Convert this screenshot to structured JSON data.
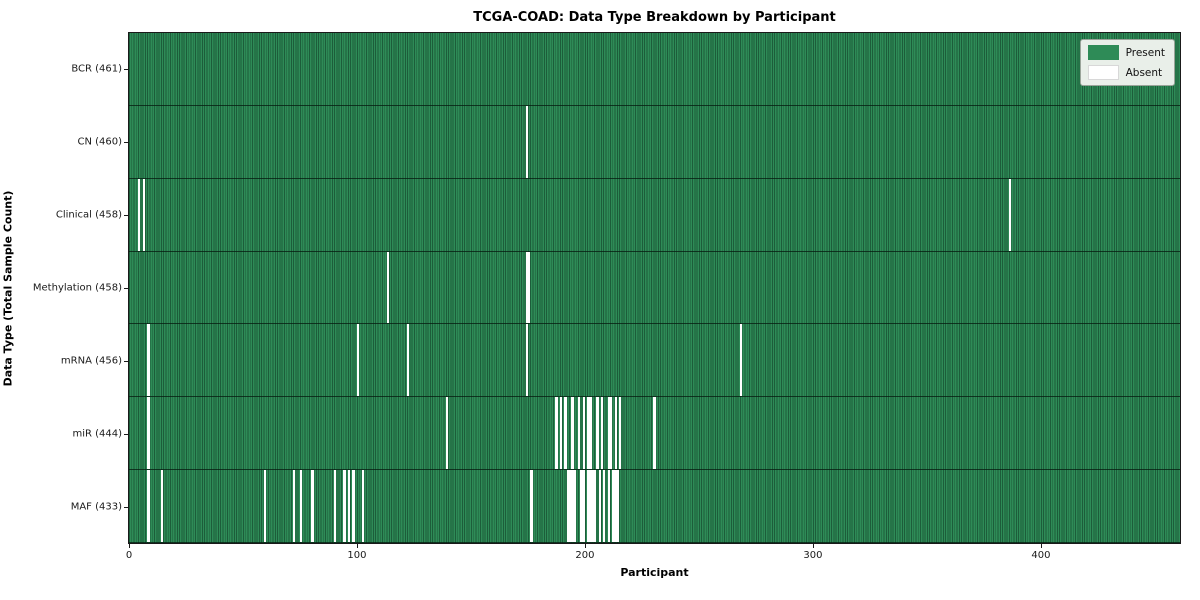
{
  "chart_data": {
    "type": "heatmap",
    "title": "TCGA-COAD: Data Type Breakdown by Participant",
    "xlabel": "Participant",
    "ylabel": "Data Type (Total Sample Count)",
    "x_range": [
      0,
      461
    ],
    "x_ticks": [
      0,
      100,
      200,
      300,
      400
    ],
    "grid": false,
    "legend_position": "upper right",
    "legend_labels": [
      "Present",
      "Absent"
    ],
    "colors": {
      "present": "#2e8b57",
      "absent": "#ffffff",
      "cell_edge": "rgba(8,38,22,0.45)",
      "row_separator": "rgba(5,25,15,0.75)",
      "legend_background": "#e9efe9"
    },
    "rows": [
      {
        "label": "BCR (461)",
        "data_type": "BCR",
        "total_samples": 461,
        "absent_participants": []
      },
      {
        "label": "CN (460)",
        "data_type": "CN",
        "total_samples": 460,
        "absent_participants": [
          174
        ]
      },
      {
        "label": "Clinical (458)",
        "data_type": "Clinical",
        "total_samples": 458,
        "absent_participants": [
          4,
          6,
          386
        ]
      },
      {
        "label": "Methylation (458)",
        "data_type": "Methylation",
        "total_samples": 458,
        "absent_participants": [
          113,
          174,
          175
        ]
      },
      {
        "label": "mRNA (456)",
        "data_type": "mRNA",
        "total_samples": 456,
        "absent_participants": [
          8,
          100,
          122,
          174,
          268
        ]
      },
      {
        "label": "miR (444)",
        "data_type": "miR",
        "total_samples": 444,
        "absent_participants": [
          8,
          139,
          187,
          189,
          191,
          194,
          197,
          199,
          201,
          202,
          205,
          207,
          210,
          211,
          213,
          215,
          230
        ]
      },
      {
        "label": "MAF (433)",
        "data_type": "MAF",
        "total_samples": 433,
        "absent_participants": [
          8,
          14,
          59,
          72,
          75,
          80,
          90,
          94,
          96,
          98,
          102,
          176,
          192,
          193,
          194,
          195,
          198,
          199,
          201,
          202,
          203,
          204,
          206,
          208,
          210,
          212,
          213,
          214
        ]
      }
    ]
  }
}
